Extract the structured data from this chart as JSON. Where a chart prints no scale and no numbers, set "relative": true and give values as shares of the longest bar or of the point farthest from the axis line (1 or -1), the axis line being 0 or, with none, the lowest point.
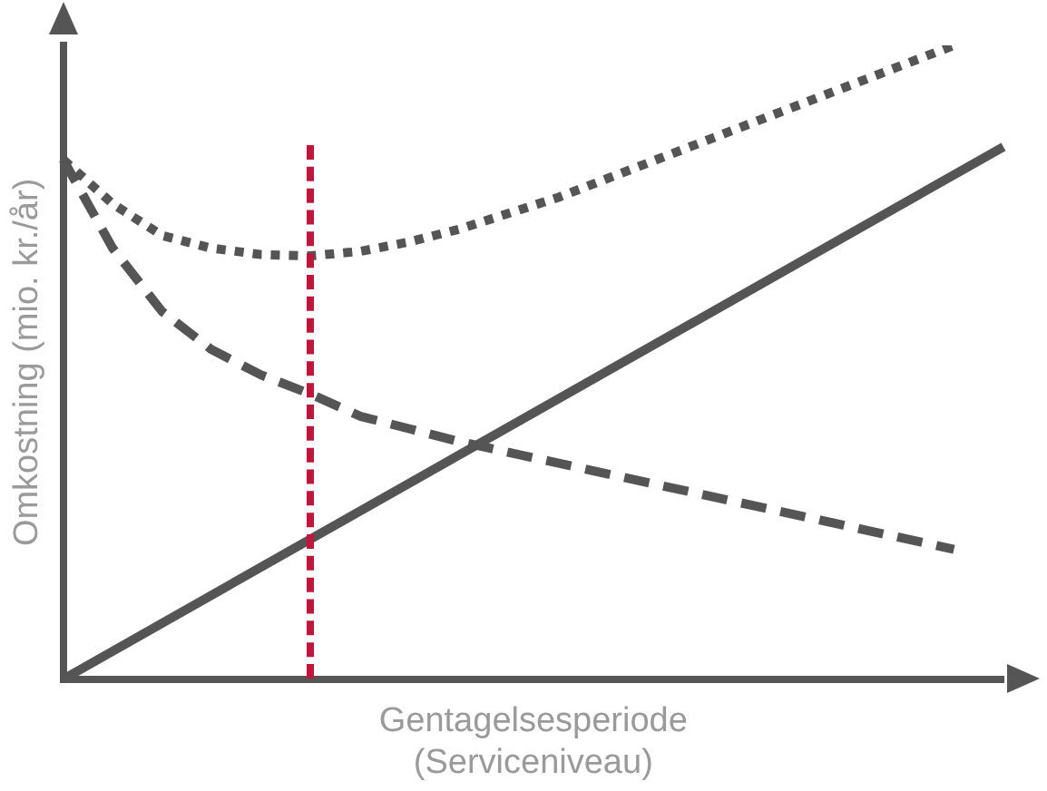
{
  "chart_data": {
    "type": "line",
    "relative": true,
    "xlabel": "Gentagelsesperiode\n(Serviceniveau)",
    "ylabel": "Omkostning (mio. kr./år)",
    "tick_labels": false,
    "grid": false,
    "legend": false,
    "marker": "none",
    "categories": [
      null,
      null,
      null,
      null,
      null,
      null,
      null,
      null,
      null,
      null,
      null,
      null,
      null,
      null,
      null,
      null,
      null,
      null,
      null,
      null
    ],
    "series": [
      {
        "color": "#555555",
        "line_style": "solid",
        "values": [
          0,
          null,
          null,
          null,
          null,
          null,
          null,
          null,
          null,
          null,
          null,
          null,
          null,
          null,
          null,
          null,
          null,
          null,
          null,
          0.84
        ]
      },
      {
        "color": "#555555",
        "line_style": "dashed",
        "values": [
          0.82,
          0.68,
          0.58,
          0.52,
          0.48,
          0.45,
          0.415,
          0.395,
          0.375,
          null,
          null,
          null,
          null,
          null,
          null,
          null,
          null,
          null,
          0.205,
          null
        ]
      },
      {
        "color": "#555555",
        "line_style": "dotted",
        "values": [
          0.82,
          0.75,
          0.7,
          0.68,
          0.67,
          0.668,
          0.675,
          0.69,
          0.71,
          null,
          0.76,
          null,
          0.82,
          null,
          0.88,
          null,
          0.94,
          null,
          1,
          null
        ]
      }
    ]
  }
}
